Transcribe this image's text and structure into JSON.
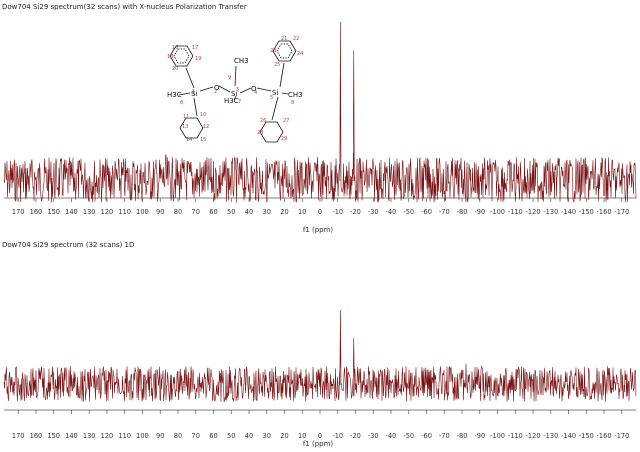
{
  "chart_data": [
    {
      "type": "line",
      "title": "Dow704 Si29 spectrum(32 scans) with X-nucleus Polarization Transfer",
      "xlabel": "f1 (ppm)",
      "xlim": [
        178,
        -178
      ],
      "x_reversed": true,
      "x_ticks": [
        170,
        160,
        150,
        140,
        130,
        120,
        110,
        100,
        90,
        80,
        70,
        60,
        50,
        40,
        30,
        20,
        10,
        0,
        -10,
        -20,
        -30,
        -40,
        -50,
        -60,
        -70,
        -80,
        -90,
        -100,
        -110,
        -120,
        -130,
        -140,
        -150,
        -160,
        -170
      ],
      "baseline": 0,
      "peaks": [
        {
          "ppm": -11.5,
          "height": 1.0
        },
        {
          "ppm": -19.0,
          "height": 0.82
        }
      ],
      "noise_amplitude": 0.018,
      "line_color": "#7b1113",
      "grid": false,
      "structure_labels": {
        "atoms": [
          "Si",
          "Si",
          "Si",
          "O",
          "O",
          "H3C",
          "CH3",
          "H3C",
          "CH3"
        ],
        "numbers": [
          "1",
          "2",
          "3",
          "4",
          "5",
          "6",
          "7",
          "8",
          "9",
          "10",
          "11",
          "12",
          "13",
          "14",
          "15",
          "16",
          "17",
          "18",
          "19",
          "20",
          "21",
          "22",
          "23",
          "24",
          "25",
          "26",
          "27",
          "28",
          "29"
        ]
      }
    },
    {
      "type": "line",
      "title": "Dow704 Si29 spectrum (32 scans) 1D",
      "xlabel": "f1 (ppm)",
      "xlim": [
        178,
        -178
      ],
      "x_reversed": true,
      "x_ticks": [
        170,
        160,
        150,
        140,
        130,
        120,
        110,
        100,
        90,
        80,
        70,
        60,
        50,
        40,
        30,
        20,
        10,
        0,
        -10,
        -20,
        -30,
        -40,
        -50,
        -60,
        -70,
        -80,
        -90,
        -100,
        -110,
        -120,
        -130,
        -140,
        -150,
        -160,
        -170
      ],
      "baseline": 0,
      "peaks": [
        {
          "ppm": -11.5,
          "height": 1.0
        },
        {
          "ppm": -19.0,
          "height": 0.62
        }
      ],
      "noise_amplitude": 0.03,
      "line_color": "#7b1113",
      "grid": false
    }
  ]
}
